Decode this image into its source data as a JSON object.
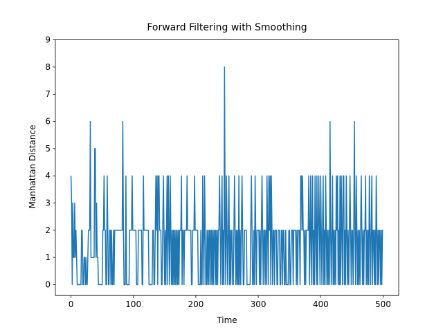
{
  "chart_data": {
    "type": "line",
    "title": "Forward Filtering with Smoothing",
    "x_label": "Time",
    "y_label": "Manhattan Distance",
    "xlim": [
      -25,
      525
    ],
    "ylim": [
      -0.4,
      9
    ],
    "xticks": [
      0,
      100,
      200,
      300,
      400,
      500
    ],
    "yticks": [
      0,
      1,
      2,
      3,
      4,
      5,
      6,
      7,
      8,
      9
    ],
    "x": [
      0,
      1,
      2,
      3,
      4,
      5,
      6,
      7,
      8,
      9,
      10,
      11,
      12,
      13,
      14,
      15,
      16,
      17,
      18,
      19,
      20,
      21,
      22,
      23,
      24,
      25,
      26,
      27,
      28,
      29,
      30,
      31,
      32,
      33,
      34,
      35,
      36,
      37,
      38,
      39,
      40,
      41,
      42,
      43,
      44,
      45,
      46,
      47,
      48,
      49,
      50,
      51,
      52,
      53,
      54,
      55,
      56,
      57,
      58,
      59,
      60,
      61,
      62,
      63,
      64,
      65,
      66,
      67,
      68,
      69,
      70,
      71,
      72,
      73,
      74,
      75,
      76,
      77,
      78,
      79,
      80,
      81,
      82,
      83,
      84,
      85,
      86,
      87,
      88,
      89,
      90,
      91,
      92,
      93,
      94,
      95,
      96,
      97,
      98,
      99,
      100,
      101,
      102,
      103,
      104,
      105,
      106,
      107,
      108,
      109,
      110,
      111,
      112,
      113,
      114,
      115,
      116,
      117,
      118,
      119,
      120,
      121,
      122,
      123,
      124,
      125,
      126,
      127,
      128,
      129,
      130,
      131,
      132,
      133,
      134,
      135,
      136,
      137,
      138,
      139,
      140,
      141,
      142,
      143,
      144,
      145,
      146,
      147,
      148,
      149,
      150,
      151,
      152,
      153,
      154,
      155,
      156,
      157,
      158,
      159,
      160,
      161,
      162,
      163,
      164,
      165,
      166,
      167,
      168,
      169,
      170,
      171,
      172,
      173,
      174,
      175,
      176,
      177,
      178,
      179,
      180,
      181,
      182,
      183,
      184,
      185,
      186,
      187,
      188,
      189,
      190,
      191,
      192,
      193,
      194,
      195,
      196,
      197,
      198,
      199,
      200,
      201,
      202,
      203,
      204,
      205,
      206,
      207,
      208,
      209,
      210,
      211,
      212,
      213,
      214,
      215,
      216,
      217,
      218,
      219,
      220,
      221,
      222,
      223,
      224,
      225,
      226,
      227,
      228,
      229,
      230,
      231,
      232,
      233,
      234,
      235,
      236,
      237,
      238,
      239,
      240,
      241,
      242,
      243,
      244,
      245,
      246,
      247,
      248,
      249,
      250,
      251,
      252,
      253,
      254,
      255,
      256,
      257,
      258,
      259,
      260,
      261,
      262,
      263,
      264,
      265,
      266,
      267,
      268,
      269,
      270,
      271,
      272,
      273,
      274,
      275,
      276,
      277,
      278,
      279,
      280,
      281,
      282,
      283,
      284,
      285,
      286,
      287,
      288,
      289,
      290,
      291,
      292,
      293,
      294,
      295,
      296,
      297,
      298,
      299,
      300,
      301,
      302,
      303,
      304,
      305,
      306,
      307,
      308,
      309,
      310,
      311,
      312,
      313,
      314,
      315,
      316,
      317,
      318,
      319,
      320,
      321,
      322,
      323,
      324,
      325,
      326,
      327,
      328,
      329,
      330,
      331,
      332,
      333,
      334,
      335,
      336,
      337,
      338,
      339,
      340,
      341,
      342,
      343,
      344,
      345,
      346,
      347,
      348,
      349,
      350,
      351,
      352,
      353,
      354,
      355,
      356,
      357,
      358,
      359,
      360,
      361,
      362,
      363,
      364,
      365,
      366,
      367,
      368,
      369,
      370,
      371,
      372,
      373,
      374,
      375,
      376,
      377,
      378,
      379,
      380,
      381,
      382,
      383,
      384,
      385,
      386,
      387,
      388,
      389,
      390,
      391,
      392,
      393,
      394,
      395,
      396,
      397,
      398,
      399,
      400,
      401,
      402,
      403,
      404,
      405,
      406,
      407,
      408,
      409,
      410,
      411,
      412,
      413,
      414,
      415,
      416,
      417,
      418,
      419,
      420,
      421,
      422,
      423,
      424,
      425,
      426,
      427,
      428,
      429,
      430,
      431,
      432,
      433,
      434,
      435,
      436,
      437,
      438,
      439,
      440,
      441,
      442,
      443,
      444,
      445,
      446,
      447,
      448,
      449,
      450,
      451,
      452,
      453,
      454,
      455,
      456,
      457,
      458,
      459,
      460,
      461,
      462,
      463,
      464,
      465,
      466,
      467,
      468,
      469,
      470,
      471,
      472,
      473,
      474,
      475,
      476,
      477,
      478,
      479,
      480,
      481,
      482,
      483,
      484,
      485,
      486,
      487,
      488,
      489,
      490,
      491,
      492,
      493,
      494,
      495,
      496,
      497,
      498,
      499,
      500
    ],
    "series": [
      {
        "color": "#1f77b4",
        "values": [
          4,
          3,
          0,
          3,
          1,
          1,
          3,
          1,
          2,
          1,
          0,
          0,
          0,
          0,
          0,
          0,
          0,
          2,
          2,
          0,
          0,
          1,
          1,
          0,
          1,
          0,
          0,
          1,
          2,
          2,
          2,
          6,
          1,
          1,
          1,
          1,
          1,
          1,
          5,
          5,
          1,
          3,
          1,
          1,
          0,
          0,
          0,
          0,
          0,
          0,
          0,
          2,
          2,
          4,
          2,
          2,
          0,
          0,
          4,
          2,
          0,
          0,
          2,
          2,
          0,
          2,
          0,
          0,
          2,
          0,
          2,
          2,
          2,
          2,
          2,
          2,
          2,
          2,
          2,
          2,
          2,
          2,
          2,
          6,
          2,
          0,
          0,
          0,
          4,
          0,
          0,
          0,
          0,
          0,
          2,
          2,
          2,
          2,
          4,
          2,
          2,
          2,
          2,
          2,
          2,
          0,
          0,
          0,
          2,
          2,
          2,
          2,
          2,
          2,
          0,
          0,
          4,
          2,
          2,
          2,
          2,
          2,
          2,
          2,
          2,
          0,
          0,
          0,
          0,
          0,
          0,
          2,
          2,
          0,
          0,
          2,
          4,
          2,
          4,
          0,
          4,
          4,
          2,
          2,
          2,
          0,
          0,
          2,
          4,
          2,
          0,
          2,
          0,
          2,
          4,
          0,
          4,
          2,
          0,
          4,
          2,
          0,
          2,
          0,
          2,
          0,
          2,
          0,
          2,
          0,
          2,
          0,
          2,
          0,
          2,
          2,
          2,
          4,
          0,
          2,
          2,
          0,
          2,
          2,
          2,
          2,
          4,
          2,
          2,
          2,
          2,
          2,
          2,
          0,
          0,
          2,
          2,
          2,
          4,
          2,
          2,
          2,
          2,
          2,
          0,
          0,
          0,
          0,
          2,
          0,
          0,
          4,
          2,
          0,
          4,
          2,
          0,
          0,
          2,
          0,
          2,
          0,
          2,
          2,
          0,
          2,
          0,
          2,
          0,
          2,
          2,
          0,
          2,
          0,
          2,
          0,
          2,
          2,
          4,
          2,
          0,
          2,
          4,
          0,
          2,
          0,
          8,
          2,
          0,
          4,
          2,
          0,
          2,
          4,
          0,
          2,
          0,
          2,
          2,
          0,
          0,
          2,
          4,
          2,
          0,
          2,
          0,
          2,
          0,
          4,
          0,
          2,
          0,
          2,
          4,
          2,
          0,
          0,
          2,
          2,
          2,
          2,
          0,
          0,
          0,
          0,
          0,
          0,
          2,
          4,
          2,
          0,
          0,
          2,
          0,
          4,
          2,
          0,
          2,
          2,
          2,
          2,
          0,
          2,
          0,
          2,
          4,
          2,
          0,
          2,
          2,
          0,
          2,
          0,
          4,
          2,
          0,
          4,
          2,
          4,
          0,
          4,
          2,
          0,
          2,
          2,
          0,
          2,
          2,
          2,
          0,
          0,
          2,
          2,
          2,
          0,
          0,
          2,
          2,
          0,
          2,
          2,
          0,
          0,
          2,
          0,
          0,
          0,
          0,
          2,
          2,
          0,
          0,
          2,
          2,
          2,
          0,
          2,
          2,
          2,
          2,
          0,
          2,
          0,
          2,
          2,
          2,
          0,
          4,
          4,
          2,
          4,
          2,
          2,
          0,
          2,
          0,
          2,
          2,
          2,
          2,
          4,
          0,
          2,
          4,
          0,
          2,
          4,
          0,
          2,
          0,
          4,
          2,
          0,
          4,
          0,
          2,
          4,
          2,
          0,
          4,
          2,
          0,
          2,
          4,
          0,
          2,
          0,
          4,
          2,
          0,
          2,
          0,
          2,
          0,
          6,
          2,
          0,
          2,
          4,
          0,
          2,
          0,
          2,
          0,
          4,
          2,
          4,
          0,
          2,
          0,
          4,
          0,
          4,
          2,
          0,
          4,
          4,
          0,
          2,
          0,
          4,
          2,
          0,
          2,
          0,
          2,
          4,
          2,
          0,
          2,
          2,
          0,
          2,
          6,
          2,
          0,
          4,
          2,
          0,
          2,
          0,
          2,
          0,
          2,
          4,
          2,
          0,
          2,
          0,
          2,
          2,
          4,
          0,
          2,
          0,
          2,
          0,
          4,
          2,
          0,
          2,
          4,
          0,
          2,
          2,
          0,
          2,
          0,
          4,
          2,
          0,
          2,
          0,
          2,
          2,
          0,
          2,
          0,
          2,
          2
        ]
      }
    ]
  }
}
